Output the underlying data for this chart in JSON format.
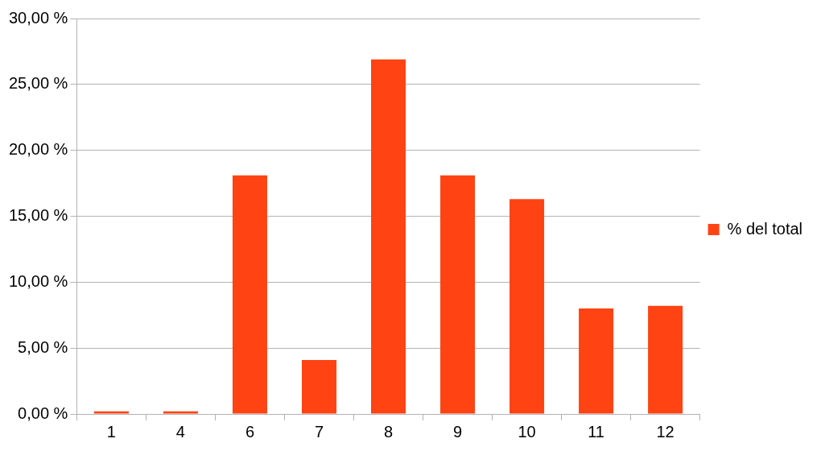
{
  "chart_data": {
    "type": "bar",
    "categories": [
      "1",
      "4",
      "6",
      "7",
      "8",
      "9",
      "10",
      "11",
      "12"
    ],
    "series": [
      {
        "name": "% del total",
        "color": "#ff4313",
        "values": [
          0.2,
          0.2,
          18.1,
          4.1,
          26.9,
          18.1,
          16.3,
          8.0,
          8.2
        ]
      }
    ],
    "ylim": [
      0,
      30
    ],
    "yticks": [
      {
        "value": 0,
        "label": "0,00 %"
      },
      {
        "value": 5,
        "label": "5,00 %"
      },
      {
        "value": 10,
        "label": "10,00 %"
      },
      {
        "value": 15,
        "label": "15,00 %"
      },
      {
        "value": 20,
        "label": "20,00 %"
      },
      {
        "value": 25,
        "label": "25,00 %"
      },
      {
        "value": 30,
        "label": "30,00 %"
      }
    ],
    "grid": "y",
    "legend": "right"
  }
}
